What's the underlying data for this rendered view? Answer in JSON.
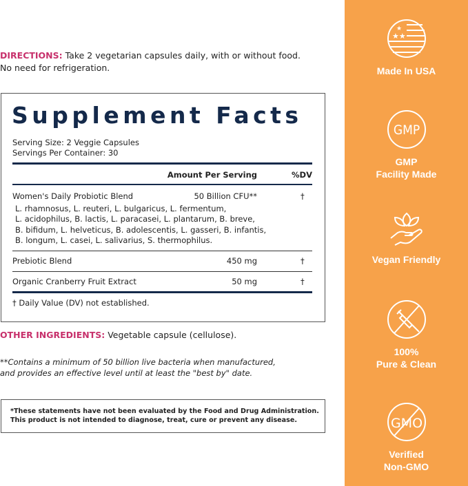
{
  "directions": {
    "label": "DIRECTIONS:",
    "text": " Take 2 vegetarian capsules daily, with or without food.",
    "text2": "No need for refrigeration."
  },
  "facts": {
    "title": "Supplement Facts",
    "serving_size": "Serving Size: 2 Veggie Capsules",
    "servings_per_container": "Servings Per Container: 30",
    "header_amount": "Amount Per Serving",
    "header_dv": "%DV",
    "rows": [
      {
        "name": "Women's Daily Probiotic Blend",
        "amount": "50 Billion CFU**",
        "dv": "†",
        "details": [
          "L. rhamnosus, L. reuteri, L. bulgaricus, L. fermentum,",
          "L. acidophilus, B. lactis, L. paracasei, L. plantarum, B. breve,",
          "B. bifidum, L. helveticus, B. adolescentis, L. gasseri, B. infantis,",
          "B. longum, L. casei, L. salivarius, S. thermophilus."
        ]
      },
      {
        "name": "Prebiotic Blend",
        "amount": "450 mg",
        "dv": "†"
      },
      {
        "name": "Organic Cranberry Fruit Extract",
        "amount": "50 mg",
        "dv": "†"
      }
    ],
    "footnote": "† Daily Value (DV) not established."
  },
  "other_ingredients": {
    "label": "OTHER INGREDIENTS:",
    "text": " Vegetable capsule (cellulose)."
  },
  "note": {
    "line1": "**Contains a minimum of 50 billion live bacteria when manufactured,",
    "line2": "and provides an effective level until at least the \"best by\" date."
  },
  "disclaimer": {
    "line1": "*These statements have not been evaluated by the Food and Drug Administration.",
    "line2": "This product is not intended to diagnose, treat, cure or prevent any disease."
  },
  "badges": [
    {
      "icon": "us-flag-icon",
      "label": "Made In USA"
    },
    {
      "icon": "gmp-icon",
      "icon_text": "GMP",
      "label1": "GMP",
      "label2": "Facility Made"
    },
    {
      "icon": "leaf-hand-icon",
      "label": "Vegan Friendly"
    },
    {
      "icon": "no-syringe-icon",
      "label1": "100%",
      "label2": "Pure & Clean"
    },
    {
      "icon": "no-gmo-icon",
      "icon_text": "GMO",
      "label1": "Verified",
      "label2": "Non-GMO"
    }
  ],
  "colors": {
    "accent_pink": "#c7306b",
    "navy": "#14294a",
    "panel_orange": "#f7a24a"
  }
}
